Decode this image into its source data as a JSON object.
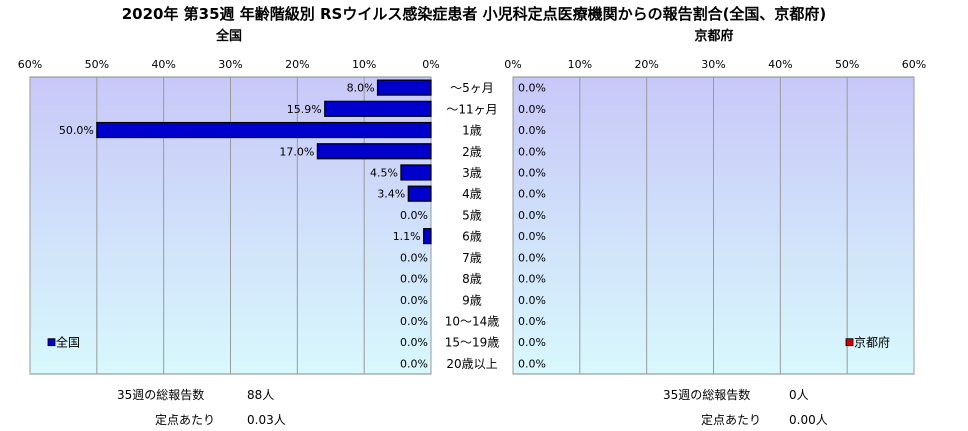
{
  "title": "2020年 第35週 年齢階級別 RSウイルス感染症患者 小児科定点医療機関からの報告割合(全国、京都府)",
  "colors": {
    "national_bar": "#0000cc",
    "kyoto_bar": "#cc0000",
    "plot_top": "#c8c8f8",
    "plot_bottom": "#d8f8fc"
  },
  "chart_data": [
    {
      "type": "bar",
      "orientation": "horizontal",
      "direction": "right-to-left",
      "title": "全国",
      "categories": [
        "～5ヶ月",
        "～11ヶ月",
        "1歳",
        "2歳",
        "3歳",
        "4歳",
        "5歳",
        "6歳",
        "7歳",
        "8歳",
        "9歳",
        "10～14歳",
        "15～19歳",
        "20歳以上"
      ],
      "series": [
        {
          "name": "全国",
          "values": [
            8.0,
            15.9,
            50.0,
            17.0,
            4.5,
            3.4,
            0.0,
            1.1,
            0.0,
            0.0,
            0.0,
            0.0,
            0.0,
            0.0
          ]
        }
      ],
      "data_labels": [
        "8.0%",
        "15.9%",
        "50.0%",
        "17.0%",
        "4.5%",
        "3.4%",
        "0.0%",
        "1.1%",
        "0.0%",
        "0.0%",
        "0.0%",
        "0.0%",
        "0.0%",
        "0.0%"
      ],
      "xlim": [
        0,
        60
      ],
      "xticks": [
        "60%",
        "50%",
        "40%",
        "30%",
        "20%",
        "10%",
        "0%"
      ],
      "grid": true,
      "legend": "bottom-left"
    },
    {
      "type": "bar",
      "orientation": "horizontal",
      "direction": "left-to-right",
      "title": "京都府",
      "categories": [
        "～5ヶ月",
        "～11ヶ月",
        "1歳",
        "2歳",
        "3歳",
        "4歳",
        "5歳",
        "6歳",
        "7歳",
        "8歳",
        "9歳",
        "10～14歳",
        "15～19歳",
        "20歳以上"
      ],
      "series": [
        {
          "name": "京都府",
          "values": [
            0,
            0,
            0,
            0,
            0,
            0,
            0,
            0,
            0,
            0,
            0,
            0,
            0,
            0
          ]
        }
      ],
      "data_labels": [
        "0.0%",
        "0.0%",
        "0.0%",
        "0.0%",
        "0.0%",
        "0.0%",
        "0.0%",
        "0.0%",
        "0.0%",
        "0.0%",
        "0.0%",
        "0.0%",
        "0.0%",
        "0.0%"
      ],
      "xlim": [
        0,
        60
      ],
      "xticks": [
        "0%",
        "10%",
        "20%",
        "30%",
        "40%",
        "50%",
        "60%"
      ],
      "grid": true,
      "legend": "bottom-right"
    }
  ],
  "notes": {
    "national": {
      "reports_label": "35週の総報告数",
      "reports_value": "88人",
      "per_site_label": "定点あたり",
      "per_site_value": "0.03人"
    },
    "kyoto": {
      "reports_label": "35週の総報告数",
      "reports_value": "0人",
      "per_site_label": "定点あたり",
      "per_site_value": "0.00人"
    }
  }
}
